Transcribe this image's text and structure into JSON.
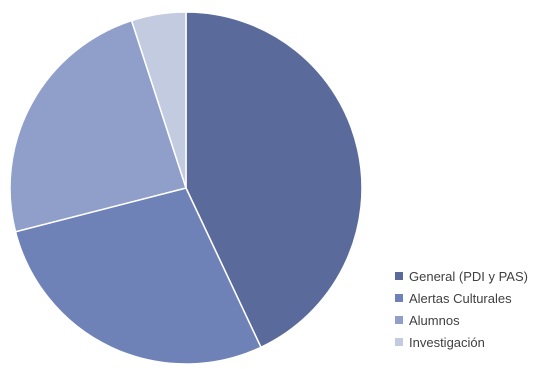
{
  "chart_data": {
    "type": "pie",
    "categories": [
      "General (PDI y PAS)",
      "Alertas Culturales",
      "Alumnos",
      "Investigación"
    ],
    "values": [
      43,
      28,
      24,
      5
    ],
    "colors": [
      "#5a6a9a",
      "#6f82b8",
      "#8f9fca",
      "#c3cbe1"
    ],
    "start_angle_deg": 0,
    "direction": "clockwise",
    "legend_position": "bottom-right",
    "title": ""
  }
}
